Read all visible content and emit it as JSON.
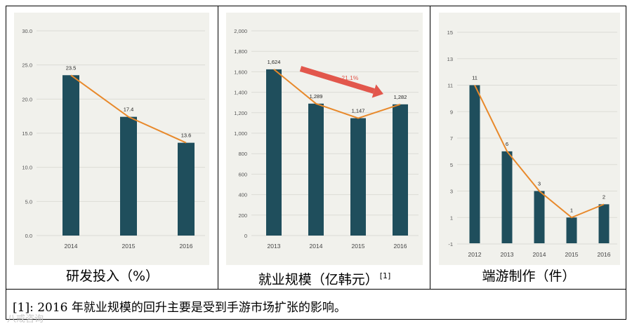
{
  "chart_data": [
    {
      "type": "bar",
      "categories": [
        "2014",
        "2015",
        "2016"
      ],
      "values": [
        23.5,
        17.4,
        13.6
      ],
      "value_labels": [
        "23.5",
        "17.4",
        "13.6"
      ],
      "y_ticks": [
        "0.0",
        "5.0",
        "10.0",
        "15.0",
        "20.0",
        "25.0",
        "30.0"
      ],
      "ylim": [
        0,
        30
      ],
      "overlay_line": true,
      "caption": "研发投入（%）"
    },
    {
      "type": "bar",
      "categories": [
        "2013",
        "2014",
        "2015",
        "2016"
      ],
      "values": [
        1624,
        1289,
        1147,
        1282
      ],
      "value_labels": [
        "1,624",
        "1,289",
        "1,147",
        "1,282"
      ],
      "y_ticks": [
        "0",
        "200",
        "400",
        "600",
        "800",
        "1,000",
        "1,200",
        "1,400",
        "1,600",
        "1,800",
        "2,000"
      ],
      "ylim": [
        0,
        2000
      ],
      "overlay_line": true,
      "annotation": "-21.1%",
      "caption": "就业规模（亿韩元）",
      "caption_sup": "[1]"
    },
    {
      "type": "bar",
      "categories": [
        "2012",
        "2013",
        "2014",
        "2015",
        "2016"
      ],
      "values": [
        11,
        6,
        3,
        1,
        2
      ],
      "value_labels": [
        "11",
        "6",
        "3",
        "1",
        "2"
      ],
      "y_ticks": [
        "-1",
        "1",
        "3",
        "5",
        "7",
        "9",
        "11",
        "13",
        "15"
      ],
      "ylim": [
        -1,
        15
      ],
      "overlay_line": true,
      "caption": "端游制作（件）"
    }
  ],
  "colors": {
    "bar": "#1f4e5c",
    "line": "#e8892b",
    "arrow": "#e2574c",
    "grid": "#dcdcd6",
    "panel": "#f1f1ec"
  },
  "footnote": "[1]: 2016 年就业规模的回升主要是受到手游市场扩张的影响。",
  "watermark": "八戒咨询"
}
